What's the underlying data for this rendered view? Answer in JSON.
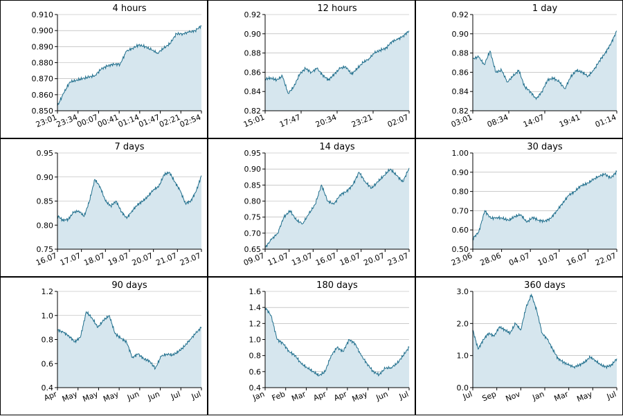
{
  "colors": {
    "line": "#1f6e8c",
    "fill": "#d6e6ee",
    "grid": "#aaaaaa",
    "axis": "#000000"
  },
  "chart_data": [
    {
      "type": "area",
      "title": "4 hours",
      "ylim": [
        0.85,
        0.91
      ],
      "yticks": [
        "0.850",
        "0.860",
        "0.870",
        "0.880",
        "0.890",
        "0.900",
        "0.910"
      ],
      "xticks": [
        "23:01",
        "23:34",
        "00:07",
        "00:41",
        "01:14",
        "01:47",
        "02:21",
        "02:54"
      ],
      "values": [
        0.853,
        0.861,
        0.868,
        0.869,
        0.87,
        0.871,
        0.872,
        0.876,
        0.878,
        0.879,
        0.879,
        0.887,
        0.889,
        0.891,
        0.89,
        0.888,
        0.886,
        0.889,
        0.892,
        0.898,
        0.898,
        0.899,
        0.9,
        0.903
      ],
      "grid": true,
      "xlabel": "",
      "ylabel": ""
    },
    {
      "type": "area",
      "title": "12 hours",
      "ylim": [
        0.82,
        0.92
      ],
      "yticks": [
        "0.82",
        "0.84",
        "0.86",
        "0.88",
        "0.90",
        "0.92"
      ],
      "xticks": [
        "15:01",
        "17:47",
        "20:34",
        "23:21",
        "02:07"
      ],
      "values": [
        0.853,
        0.854,
        0.852,
        0.856,
        0.838,
        0.845,
        0.858,
        0.864,
        0.86,
        0.864,
        0.857,
        0.852,
        0.858,
        0.864,
        0.866,
        0.858,
        0.864,
        0.87,
        0.874,
        0.88,
        0.883,
        0.885,
        0.892,
        0.894,
        0.898,
        0.903
      ],
      "grid": true,
      "xlabel": "",
      "ylabel": ""
    },
    {
      "type": "area",
      "title": "1 day",
      "ylim": [
        0.82,
        0.92
      ],
      "yticks": [
        "0.82",
        "0.84",
        "0.86",
        "0.88",
        "0.90",
        "0.92"
      ],
      "xticks": [
        "03:01",
        "08:34",
        "14:07",
        "19:41",
        "01:14"
      ],
      "values": [
        0.874,
        0.876,
        0.868,
        0.882,
        0.86,
        0.862,
        0.85,
        0.856,
        0.862,
        0.845,
        0.84,
        0.832,
        0.84,
        0.852,
        0.854,
        0.85,
        0.843,
        0.855,
        0.862,
        0.86,
        0.856,
        0.862,
        0.872,
        0.88,
        0.89,
        0.903
      ],
      "grid": true,
      "xlabel": "",
      "ylabel": ""
    },
    {
      "type": "area",
      "title": "7 days",
      "ylim": [
        0.75,
        0.95
      ],
      "yticks": [
        "0.75",
        "0.80",
        "0.85",
        "0.90",
        "0.95"
      ],
      "xticks": [
        "16.07",
        "17.07",
        "18.07",
        "19.07",
        "20.07",
        "21.07",
        "23.07"
      ],
      "values": [
        0.82,
        0.81,
        0.812,
        0.826,
        0.83,
        0.818,
        0.85,
        0.895,
        0.88,
        0.85,
        0.84,
        0.85,
        0.828,
        0.814,
        0.83,
        0.842,
        0.85,
        0.86,
        0.874,
        0.88,
        0.905,
        0.91,
        0.89,
        0.872,
        0.845,
        0.85,
        0.87,
        0.903
      ],
      "grid": true,
      "xlabel": "",
      "ylabel": ""
    },
    {
      "type": "area",
      "title": "14 days",
      "ylim": [
        0.65,
        0.95
      ],
      "yticks": [
        "0.65",
        "0.70",
        "0.75",
        "0.80",
        "0.85",
        "0.90",
        "0.95"
      ],
      "xticks": [
        "09.07",
        "11.07",
        "13.07",
        "16.07",
        "18.07",
        "20.07",
        "23.07"
      ],
      "values": [
        0.655,
        0.68,
        0.7,
        0.75,
        0.77,
        0.74,
        0.73,
        0.76,
        0.79,
        0.85,
        0.8,
        0.79,
        0.82,
        0.83,
        0.85,
        0.89,
        0.86,
        0.84,
        0.86,
        0.88,
        0.9,
        0.88,
        0.86,
        0.903
      ],
      "grid": true,
      "xlabel": "",
      "ylabel": ""
    },
    {
      "type": "area",
      "title": "30 days",
      "ylim": [
        0.5,
        1.0
      ],
      "yticks": [
        "0.50",
        "0.60",
        "0.70",
        "0.80",
        "0.90",
        "1.00"
      ],
      "xticks": [
        "23.06",
        "28.06",
        "04.07",
        "10.07",
        "16.07",
        "22.07"
      ],
      "values": [
        0.555,
        0.59,
        0.7,
        0.66,
        0.665,
        0.66,
        0.65,
        0.67,
        0.68,
        0.64,
        0.665,
        0.65,
        0.645,
        0.66,
        0.7,
        0.74,
        0.78,
        0.8,
        0.83,
        0.84,
        0.86,
        0.88,
        0.89,
        0.87,
        0.903
      ],
      "grid": true,
      "xlabel": "",
      "ylabel": ""
    },
    {
      "type": "area",
      "title": "90 days",
      "ylim": [
        0.4,
        1.2
      ],
      "yticks": [
        "0.4",
        "0.6",
        "0.8",
        "1.0",
        "1.2"
      ],
      "xticks": [
        "Apr",
        "May",
        "May",
        "May",
        "Jun",
        "Jun",
        "Jul",
        "Jul"
      ],
      "values": [
        0.88,
        0.86,
        0.83,
        0.78,
        0.82,
        1.03,
        0.98,
        0.9,
        0.96,
        1.0,
        0.85,
        0.81,
        0.78,
        0.65,
        0.68,
        0.64,
        0.62,
        0.56,
        0.66,
        0.68,
        0.67,
        0.7,
        0.74,
        0.8,
        0.85,
        0.903
      ],
      "grid": true,
      "xlabel": "",
      "ylabel": ""
    },
    {
      "type": "area",
      "title": "180 days",
      "ylim": [
        0.4,
        1.6
      ],
      "yticks": [
        "0.4",
        "0.6",
        "0.8",
        "1.0",
        "1.2",
        "1.4",
        "1.6"
      ],
      "xticks": [
        "Jan",
        "Feb",
        "Mar",
        "Apr",
        "Apr",
        "May",
        "Jun",
        "Jul"
      ],
      "values": [
        1.4,
        1.3,
        1.0,
        0.95,
        0.85,
        0.8,
        0.7,
        0.65,
        0.6,
        0.55,
        0.6,
        0.8,
        0.9,
        0.85,
        1.0,
        0.95,
        0.8,
        0.7,
        0.6,
        0.56,
        0.64,
        0.65,
        0.7,
        0.8,
        0.903
      ],
      "grid": true,
      "xlabel": "",
      "ylabel": ""
    },
    {
      "type": "area",
      "title": "360 days",
      "ylim": [
        0.0,
        3.0
      ],
      "yticks": [
        "0.0",
        "1.0",
        "2.0",
        "3.0"
      ],
      "xticks": [
        "Jul",
        "Sep",
        "Nov",
        "Jan",
        "Mar",
        "May",
        "Jul"
      ],
      "values": [
        1.8,
        1.2,
        1.5,
        1.7,
        1.6,
        1.9,
        1.8,
        1.7,
        2.0,
        1.8,
        2.5,
        2.9,
        2.4,
        1.7,
        1.5,
        1.2,
        0.9,
        0.8,
        0.7,
        0.65,
        0.7,
        0.8,
        0.95,
        0.85,
        0.7,
        0.65,
        0.7,
        0.903
      ],
      "grid": true,
      "xlabel": "",
      "ylabel": ""
    }
  ]
}
